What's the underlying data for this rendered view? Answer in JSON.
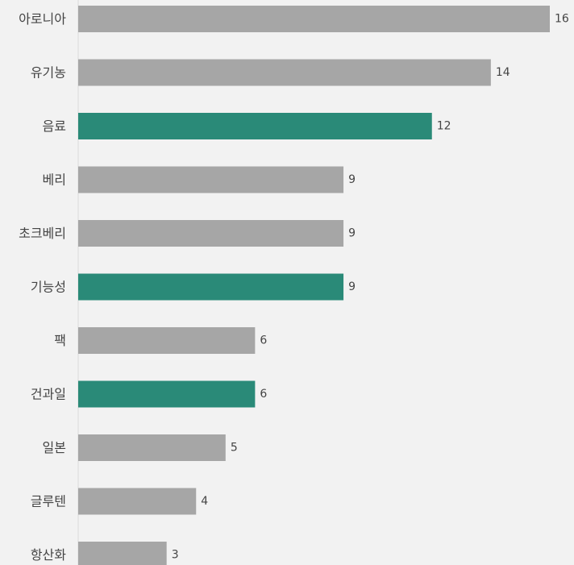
{
  "chart_data": {
    "type": "bar",
    "orientation": "horizontal",
    "categories": [
      "아로니아",
      "유기농",
      "음료",
      "베리",
      "초크베리",
      "기능성",
      "팩",
      "건과일",
      "일본",
      "글루텐",
      "항산화"
    ],
    "values": [
      16,
      14,
      12,
      9,
      9,
      9,
      6,
      6,
      5,
      4,
      3
    ],
    "highlighted": [
      "음료",
      "기능성",
      "건과일"
    ],
    "title": "",
    "xlabel": "",
    "ylabel": "",
    "xlim": [
      0,
      16
    ],
    "grid": false,
    "legend": "none",
    "data_labels": true
  },
  "colors": {
    "background": "#f2f2f2",
    "bar_default": "#a6a6a6",
    "bar_highlight": "#2a8a78",
    "label_text": "#444444",
    "axis_line": "#d9d9d9"
  }
}
